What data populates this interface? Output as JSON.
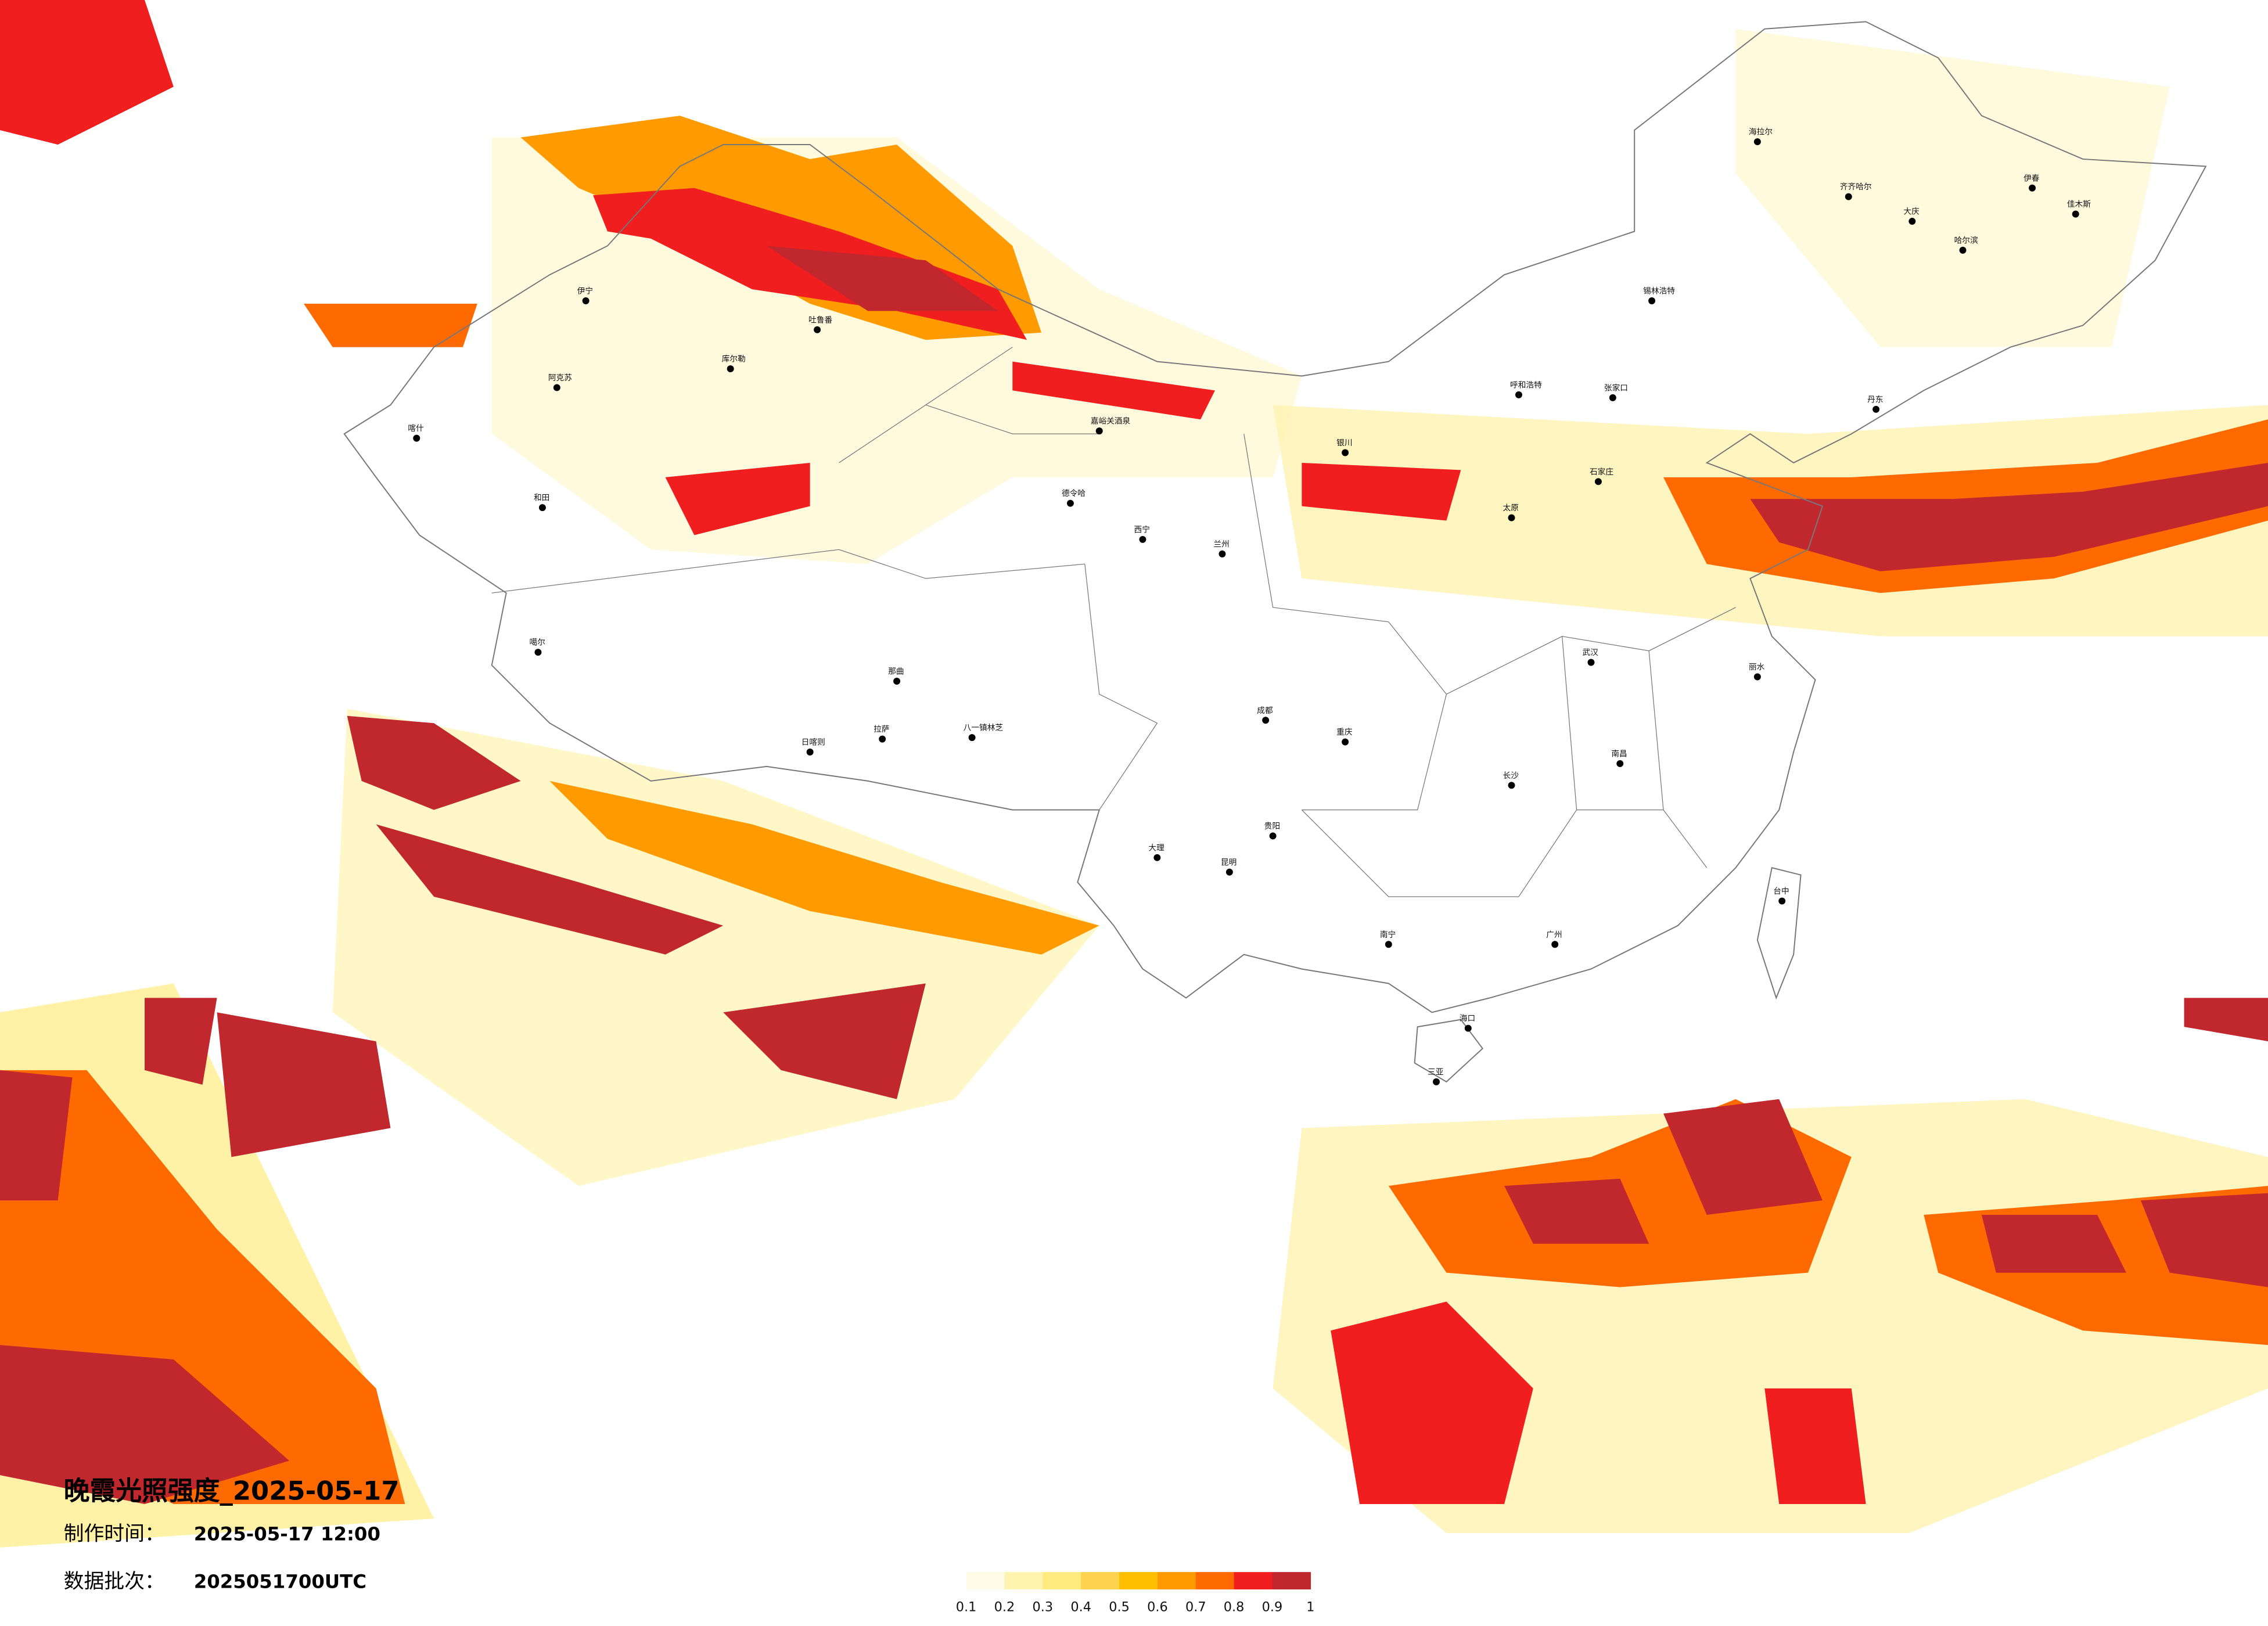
{
  "title": "晚霞光照强度_2025-05-17",
  "production_time": {
    "label": "制作时间：",
    "value": "2025-05-17 12:00"
  },
  "data_batch": {
    "label": "数据批次：",
    "value": "2025051700UTC"
  },
  "legend": {
    "ticks": [
      0.1,
      0.2,
      0.3,
      0.4,
      0.5,
      0.6,
      0.7,
      0.8,
      0.9,
      1
    ],
    "colors": [
      "#fffbe6",
      "#fff3b0",
      "#ffeb80",
      "#ffd24d",
      "#ffbf00",
      "#ff9a00",
      "#ff6a00",
      "#f01e1e",
      "#c0282e"
    ]
  },
  "cities": [
    "海拉尔",
    "齐齐哈尔",
    "大庆",
    "哈尔滨",
    "伊春",
    "佳木斯",
    "锡林浩特",
    "呼和浩特",
    "张家口",
    "丹东",
    "石家庄",
    "太原",
    "银川",
    "兰州",
    "西宁",
    "成都",
    "重庆",
    "贵阳",
    "昆明",
    "南宁",
    "海口",
    "广州",
    "长沙",
    "武汉",
    "南昌",
    "丽水",
    "台中",
    "拉萨",
    "日喀则",
    "那曲",
    "和田",
    "阿克苏",
    "伊宁",
    "喀什",
    "库尔勒",
    "吐鲁番",
    "嘉峪关酒泉",
    "德令哈",
    "噶尔",
    "八一镇林芝",
    "大理",
    "三亚"
  ]
}
